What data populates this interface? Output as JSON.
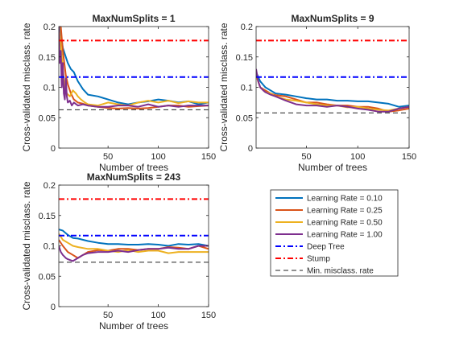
{
  "chart_data": [
    {
      "type": "line",
      "title": "MaxNumSplits = 1",
      "xlabel": "Number of trees",
      "ylabel": "Cross-validated misclass. rate",
      "xlim": [
        1,
        150
      ],
      "ylim": [
        0,
        0.2
      ],
      "xticks": [
        "50",
        "100",
        "150"
      ],
      "yticks": [
        "0",
        "0.05",
        "0.1",
        "0.15",
        "0.2"
      ],
      "series": [
        {
          "name": "Learning Rate = 0.10",
          "color": "#0072bd",
          "dash": "solid",
          "x": [
            1,
            3,
            5,
            8,
            10,
            13,
            16,
            20,
            25,
            30,
            40,
            50,
            60,
            70,
            80,
            90,
            100,
            110,
            120,
            130,
            140,
            150
          ],
          "y": [
            0.2,
            0.19,
            0.165,
            0.15,
            0.14,
            0.13,
            0.125,
            0.11,
            0.097,
            0.088,
            0.085,
            0.08,
            0.075,
            0.072,
            0.075,
            0.077,
            0.08,
            0.078,
            0.075,
            0.077,
            0.072,
            0.075
          ]
        },
        {
          "name": "Learning Rate = 0.25",
          "color": "#d95319",
          "dash": "solid",
          "x": [
            1,
            3,
            5,
            8,
            10,
            13,
            16,
            20,
            25,
            30,
            40,
            50,
            60,
            70,
            80,
            90,
            100,
            110,
            120,
            130,
            140,
            150
          ],
          "y": [
            0.2,
            0.2,
            0.16,
            0.12,
            0.105,
            0.09,
            0.08,
            0.075,
            0.073,
            0.07,
            0.068,
            0.066,
            0.065,
            0.066,
            0.065,
            0.066,
            0.068,
            0.07,
            0.07,
            0.068,
            0.069,
            0.07
          ]
        },
        {
          "name": "Learning Rate = 0.50",
          "color": "#edb120",
          "dash": "solid",
          "x": [
            1,
            3,
            5,
            7,
            9,
            12,
            15,
            18,
            20,
            23,
            27,
            30,
            40,
            50,
            60,
            70,
            80,
            90,
            100,
            110,
            120,
            130,
            140,
            150
          ],
          "y": [
            0.2,
            0.17,
            0.13,
            0.1,
            0.09,
            0.085,
            0.095,
            0.09,
            0.085,
            0.08,
            0.075,
            0.072,
            0.07,
            0.075,
            0.072,
            0.07,
            0.075,
            0.078,
            0.075,
            0.078,
            0.074,
            0.077,
            0.075,
            0.075
          ]
        },
        {
          "name": "Learning Rate = 1.00",
          "color": "#7e2f8e",
          "dash": "solid",
          "x": [
            1,
            2,
            3,
            4,
            5,
            6,
            7,
            8,
            9,
            10,
            12,
            14,
            16,
            20,
            25,
            30,
            40,
            50,
            60,
            70,
            80,
            90,
            100,
            110,
            120,
            130,
            140,
            150
          ],
          "y": [
            0.2,
            0.14,
            0.16,
            0.1,
            0.14,
            0.09,
            0.08,
            0.115,
            0.085,
            0.075,
            0.078,
            0.07,
            0.075,
            0.07,
            0.072,
            0.07,
            0.068,
            0.068,
            0.07,
            0.07,
            0.068,
            0.072,
            0.068,
            0.07,
            0.068,
            0.07,
            0.07,
            0.07
          ]
        },
        {
          "name": "Deep Tree",
          "color": "#0000ff",
          "dash": "dashdot",
          "x": [
            1,
            150
          ],
          "y": [
            0.117,
            0.117
          ]
        },
        {
          "name": "Stump",
          "color": "#ff0000",
          "dash": "dashdot",
          "x": [
            1,
            150
          ],
          "y": [
            0.177,
            0.177
          ]
        },
        {
          "name": "Min. misclass. rate",
          "color": "#222222",
          "dash": "dashed",
          "x": [
            1,
            150
          ],
          "y": [
            0.063,
            0.063
          ]
        }
      ]
    },
    {
      "type": "line",
      "title": "MaxNumSplits = 9",
      "xlabel": "Number of trees",
      "ylabel": "Cross-validated misclass. rate",
      "xlim": [
        1,
        150
      ],
      "ylim": [
        0,
        0.2
      ],
      "xticks": [
        "50",
        "100",
        "150"
      ],
      "yticks": [
        "0",
        "0.05",
        "0.1",
        "0.15",
        "0.2"
      ],
      "series": [
        {
          "name": "Learning Rate = 0.10",
          "color": "#0072bd",
          "dash": "solid",
          "x": [
            1,
            5,
            10,
            15,
            20,
            30,
            40,
            50,
            60,
            70,
            80,
            90,
            100,
            110,
            120,
            130,
            140,
            150
          ],
          "y": [
            0.125,
            0.11,
            0.1,
            0.095,
            0.09,
            0.088,
            0.085,
            0.082,
            0.08,
            0.08,
            0.078,
            0.078,
            0.077,
            0.077,
            0.075,
            0.073,
            0.068,
            0.07
          ]
        },
        {
          "name": "Learning Rate = 0.25",
          "color": "#d95319",
          "dash": "solid",
          "x": [
            1,
            5,
            10,
            15,
            20,
            30,
            40,
            50,
            60,
            70,
            80,
            90,
            100,
            110,
            120,
            130,
            140,
            150
          ],
          "y": [
            0.12,
            0.1,
            0.095,
            0.09,
            0.087,
            0.085,
            0.08,
            0.075,
            0.075,
            0.072,
            0.07,
            0.07,
            0.068,
            0.068,
            0.065,
            0.06,
            0.062,
            0.065
          ]
        },
        {
          "name": "Learning Rate = 0.50",
          "color": "#edb120",
          "dash": "solid",
          "x": [
            1,
            5,
            10,
            15,
            20,
            30,
            40,
            50,
            60,
            70,
            80,
            90,
            100,
            110,
            120,
            130,
            140,
            150
          ],
          "y": [
            0.12,
            0.1,
            0.092,
            0.09,
            0.085,
            0.08,
            0.078,
            0.075,
            0.072,
            0.07,
            0.07,
            0.067,
            0.068,
            0.065,
            0.063,
            0.062,
            0.065,
            0.068
          ]
        },
        {
          "name": "Learning Rate = 1.00",
          "color": "#7e2f8e",
          "dash": "solid",
          "x": [
            1,
            3,
            5,
            8,
            10,
            15,
            20,
            30,
            40,
            50,
            60,
            70,
            80,
            90,
            100,
            110,
            120,
            130,
            140,
            150
          ],
          "y": [
            0.13,
            0.11,
            0.1,
            0.095,
            0.092,
            0.088,
            0.085,
            0.078,
            0.072,
            0.07,
            0.07,
            0.068,
            0.07,
            0.068,
            0.065,
            0.063,
            0.06,
            0.06,
            0.065,
            0.068
          ]
        },
        {
          "name": "Deep Tree",
          "color": "#0000ff",
          "dash": "dashdot",
          "x": [
            1,
            150
          ],
          "y": [
            0.117,
            0.117
          ]
        },
        {
          "name": "Stump",
          "color": "#ff0000",
          "dash": "dashdot",
          "x": [
            1,
            150
          ],
          "y": [
            0.177,
            0.177
          ]
        },
        {
          "name": "Min. misclass. rate",
          "color": "#222222",
          "dash": "dashed",
          "x": [
            1,
            150
          ],
          "y": [
            0.058,
            0.058
          ]
        }
      ]
    },
    {
      "type": "line",
      "title": "MaxNumSplits = 243",
      "xlabel": "Number of trees",
      "ylabel": "Cross-validated misclass. rate",
      "xlim": [
        1,
        150
      ],
      "ylim": [
        0,
        0.2
      ],
      "xticks": [
        "50",
        "100",
        "150"
      ],
      "yticks": [
        "0",
        "0.05",
        "0.1",
        "0.15",
        "0.2"
      ],
      "series": [
        {
          "name": "Learning Rate = 0.10",
          "color": "#0072bd",
          "dash": "solid",
          "x": [
            1,
            5,
            10,
            15,
            20,
            30,
            40,
            50,
            60,
            70,
            80,
            90,
            100,
            110,
            120,
            130,
            140,
            150
          ],
          "y": [
            0.127,
            0.125,
            0.118,
            0.113,
            0.112,
            0.108,
            0.105,
            0.103,
            0.103,
            0.102,
            0.102,
            0.103,
            0.102,
            0.1,
            0.103,
            0.102,
            0.103,
            0.1
          ]
        },
        {
          "name": "Learning Rate = 0.25",
          "color": "#d95319",
          "dash": "solid",
          "x": [
            1,
            5,
            10,
            15,
            20,
            25,
            30,
            40,
            50,
            60,
            70,
            80,
            90,
            100,
            110,
            120,
            130,
            140,
            150
          ],
          "y": [
            0.11,
            0.1,
            0.09,
            0.085,
            0.08,
            0.085,
            0.09,
            0.093,
            0.092,
            0.095,
            0.095,
            0.093,
            0.095,
            0.095,
            0.098,
            0.097,
            0.095,
            0.1,
            0.095
          ]
        },
        {
          "name": "Learning Rate = 0.50",
          "color": "#edb120",
          "dash": "solid",
          "x": [
            1,
            5,
            10,
            15,
            20,
            30,
            40,
            50,
            60,
            70,
            80,
            90,
            100,
            110,
            120,
            130,
            140,
            150
          ],
          "y": [
            0.12,
            0.11,
            0.105,
            0.1,
            0.098,
            0.095,
            0.095,
            0.092,
            0.09,
            0.093,
            0.09,
            0.092,
            0.092,
            0.088,
            0.09,
            0.09,
            0.09,
            0.09
          ]
        },
        {
          "name": "Learning Rate = 1.00",
          "color": "#7e2f8e",
          "dash": "solid",
          "x": [
            1,
            3,
            5,
            8,
            10,
            15,
            20,
            25,
            30,
            40,
            50,
            60,
            70,
            80,
            90,
            100,
            110,
            120,
            130,
            140,
            150
          ],
          "y": [
            0.1,
            0.09,
            0.085,
            0.08,
            0.078,
            0.075,
            0.08,
            0.085,
            0.088,
            0.09,
            0.09,
            0.092,
            0.09,
            0.093,
            0.095,
            0.095,
            0.097,
            0.095,
            0.095,
            0.1,
            0.1
          ]
        },
        {
          "name": "Deep Tree",
          "color": "#0000ff",
          "dash": "dashdot",
          "x": [
            1,
            150
          ],
          "y": [
            0.117,
            0.117
          ]
        },
        {
          "name": "Stump",
          "color": "#ff0000",
          "dash": "dashdot",
          "x": [
            1,
            150
          ],
          "y": [
            0.177,
            0.177
          ]
        },
        {
          "name": "Min. misclass. rate",
          "color": "#222222",
          "dash": "dashed",
          "x": [
            1,
            150
          ],
          "y": [
            0.073,
            0.073
          ]
        }
      ]
    }
  ],
  "legend": {
    "placement": "bottom-right",
    "entries": [
      {
        "label": "Learning Rate = 0.10",
        "color": "#0072bd",
        "dash": "solid"
      },
      {
        "label": "Learning Rate = 0.25",
        "color": "#d95319",
        "dash": "solid"
      },
      {
        "label": "Learning Rate = 0.50",
        "color": "#edb120",
        "dash": "solid"
      },
      {
        "label": "Learning Rate = 1.00",
        "color": "#7e2f8e",
        "dash": "solid"
      },
      {
        "label": "Deep Tree",
        "color": "#0000ff",
        "dash": "dashdot"
      },
      {
        "label": "Stump",
        "color": "#ff0000",
        "dash": "dashdot"
      },
      {
        "label": "Min. misclass. rate",
        "color": "#222222",
        "dash": "dashed"
      }
    ]
  }
}
